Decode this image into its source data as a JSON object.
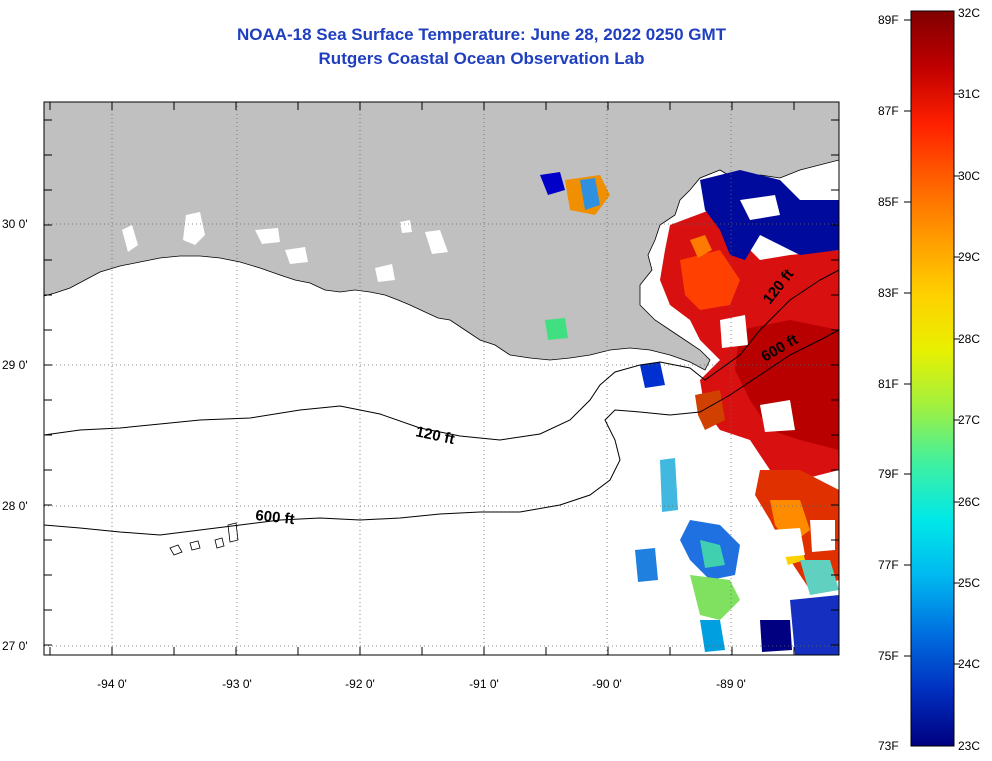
{
  "header": {
    "title": "NOAA-18 Sea Surface Temperature:  June 28, 2022 0250 GMT",
    "subtitle": "Rutgers Coastal Ocean Observation Lab"
  },
  "map": {
    "region": "northern Gulf of Mexico — Louisiana coast",
    "lon_range": [
      -94.55,
      -88.25
    ],
    "lat_range": [
      26.95,
      30.85
    ],
    "lon_ticks": [
      {
        "value": -94,
        "label": "-94 0'"
      },
      {
        "value": -93,
        "label": "-93 0'"
      },
      {
        "value": -92,
        "label": "-92 0'"
      },
      {
        "value": -91,
        "label": "-91 0'"
      },
      {
        "value": -90,
        "label": "-90 0'"
      },
      {
        "value": -89,
        "label": "-89 0'"
      }
    ],
    "lat_ticks": [
      {
        "value": 30,
        "label": "30 0'"
      },
      {
        "value": 29,
        "label": "29 0'"
      },
      {
        "value": 28,
        "label": "28 0'"
      },
      {
        "value": 27,
        "label": "27 0'"
      }
    ],
    "grid": "dotted",
    "land_color": "#c0c0c0",
    "no_data_color": "#ffffff",
    "contours": [
      {
        "depth_label": "120 ft"
      },
      {
        "depth_label": "120 ft"
      },
      {
        "depth_label": "600 ft"
      },
      {
        "depth_label": "600 ft"
      }
    ]
  },
  "colorbar": {
    "orientation": "vertical",
    "fahrenheit_labels": [
      "89F",
      "87F",
      "85F",
      "83F",
      "81F",
      "79F",
      "77F",
      "75F",
      "73F"
    ],
    "celsius_labels": [
      "32C",
      "31C",
      "30C",
      "29C",
      "28C",
      "27C",
      "26C",
      "25C",
      "24C",
      "23C"
    ],
    "stops": [
      "#800000",
      "#c00000",
      "#ff2000",
      "#ff6000",
      "#ff9a00",
      "#ffd000",
      "#e8f000",
      "#a0f040",
      "#40f0a0",
      "#00e8e8",
      "#00b8f0",
      "#0070e0",
      "#0030c0",
      "#000080"
    ]
  }
}
